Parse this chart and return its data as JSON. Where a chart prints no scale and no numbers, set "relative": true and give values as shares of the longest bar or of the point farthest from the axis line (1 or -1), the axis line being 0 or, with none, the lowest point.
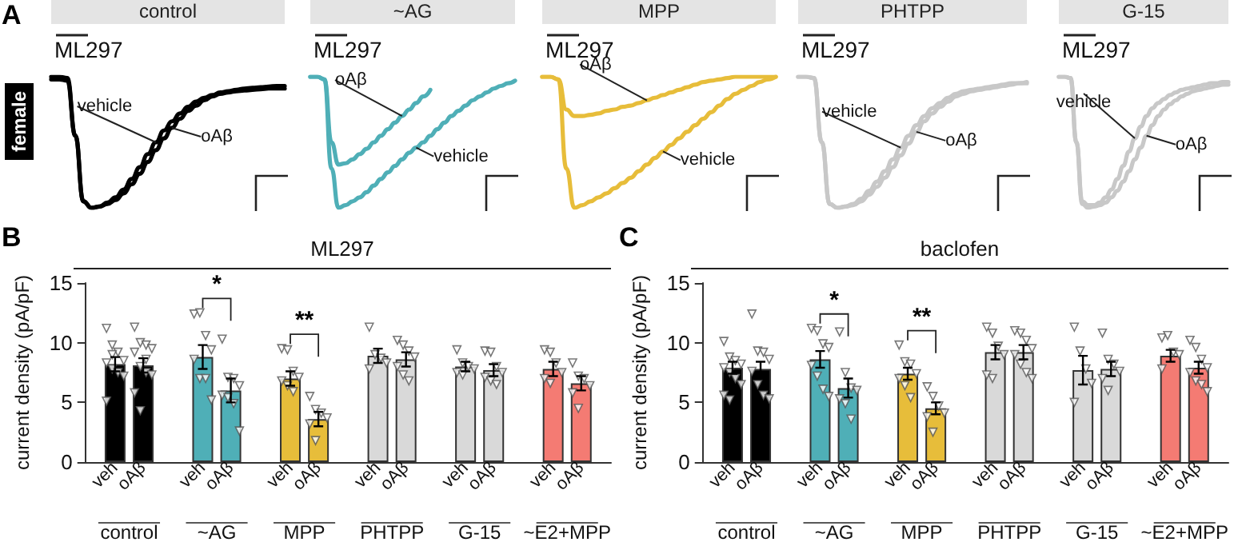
{
  "chart_data": [
    {
      "type": "line",
      "title": "control",
      "relative": true,
      "categories": [
        null,
        null,
        null,
        null,
        null,
        null,
        null,
        null,
        null,
        null,
        null,
        null,
        null,
        null,
        null,
        null,
        null,
        null,
        null,
        null,
        null,
        null,
        null,
        null,
        null,
        null,
        null,
        null,
        null,
        null
      ],
      "annotations": [
        "A",
        "female",
        "ML297"
      ],
      "series": [
        {
          "name": "vehicle",
          "color": "#000000",
          "values": [
            1,
            1,
            0.99,
            0.55,
            0.05,
            0,
            0.01,
            0.04,
            0.08,
            0.14,
            0.22,
            0.31,
            0.41,
            0.5,
            0.59,
            0.66,
            0.72,
            0.77,
            0.81,
            0.84,
            0.86,
            0.88,
            0.89,
            0.9,
            0.91,
            0.915,
            0.92,
            0.925,
            0.93,
            0.93
          ]
        },
        {
          "name": "oAβ",
          "color": "#000000",
          "values": [
            0.98,
            0.98,
            0.97,
            0.55,
            0.05,
            0,
            0.01,
            0.03,
            0.06,
            0.11,
            0.18,
            0.26,
            0.35,
            0.44,
            0.53,
            0.61,
            0.68,
            0.74,
            0.78,
            0.82,
            0.85,
            0.87,
            0.88,
            0.89,
            0.895,
            0.9,
            0.905,
            0.91,
            0.91,
            0.91
          ]
        }
      ]
    },
    {
      "type": "line",
      "title": "~AG",
      "relative": true,
      "categories": [
        null,
        null,
        null,
        null,
        null,
        null,
        null,
        null,
        null,
        null,
        null,
        null,
        null,
        null,
        null,
        null,
        null,
        null,
        null,
        null,
        null,
        null,
        null,
        null,
        null,
        null,
        null,
        null,
        null,
        null
      ],
      "annotations": [
        "ML297"
      ],
      "series": [
        {
          "name": "oAβ",
          "color": "#4fafb7",
          "values": [
            1,
            1,
            0.98,
            0.5,
            0.33,
            0.34,
            0.37,
            0.41,
            0.45,
            0.5,
            0.55,
            0.6,
            0.65,
            0.7,
            0.75,
            0.8,
            0.85,
            0.9,
            null,
            null,
            null,
            null,
            null,
            null,
            null,
            null,
            null,
            null,
            null,
            null
          ]
        },
        {
          "name": "vehicle",
          "color": "#4fafb7",
          "values": [
            1,
            1,
            0.98,
            0.3,
            0,
            0.02,
            0.05,
            0.08,
            0.12,
            0.17,
            0.22,
            0.27,
            0.32,
            0.37,
            0.42,
            0.46,
            0.5,
            0.55,
            0.6,
            0.65,
            0.7,
            0.74,
            0.78,
            0.82,
            0.85,
            0.88,
            0.91,
            0.93,
            0.95,
            0.97
          ]
        }
      ]
    },
    {
      "type": "line",
      "title": "MPP",
      "relative": true,
      "categories": [
        null,
        null,
        null,
        null,
        null,
        null,
        null,
        null,
        null,
        null,
        null,
        null,
        null,
        null,
        null,
        null,
        null,
        null,
        null,
        null,
        null,
        null,
        null,
        null,
        null,
        null,
        null,
        null,
        null,
        null
      ],
      "annotations": [
        "ML297"
      ],
      "series": [
        {
          "name": "oAβ",
          "color": "#e7bd3a",
          "values": [
            1,
            1,
            0.98,
            0.75,
            0.7,
            0.7,
            0.71,
            0.72,
            0.74,
            0.75,
            0.77,
            0.78,
            0.8,
            0.82,
            0.84,
            0.86,
            0.88,
            0.9,
            0.92,
            0.94,
            0.96,
            0.97,
            0.98,
            0.99,
            1,
            1,
            1,
            1,
            1,
            1
          ]
        },
        {
          "name": "vehicle",
          "color": "#e7bd3a",
          "values": [
            1,
            1,
            0.98,
            0.3,
            0,
            0.02,
            0.05,
            0.08,
            0.11,
            0.15,
            0.19,
            0.23,
            0.28,
            0.33,
            0.38,
            0.43,
            0.48,
            0.53,
            0.58,
            0.63,
            0.68,
            0.73,
            0.78,
            0.83,
            0.87,
            0.9,
            0.93,
            0.96,
            0.98,
            1
          ]
        }
      ]
    },
    {
      "type": "line",
      "title": "PHTPP",
      "relative": true,
      "categories": [
        null,
        null,
        null,
        null,
        null,
        null,
        null,
        null,
        null,
        null,
        null,
        null,
        null,
        null,
        null,
        null,
        null,
        null,
        null,
        null,
        null,
        null,
        null,
        null,
        null,
        null,
        null,
        null,
        null,
        null
      ],
      "annotations": [
        "ML297"
      ],
      "series": [
        {
          "name": "vehicle",
          "color": "#c8c8c8",
          "values": [
            1,
            1,
            0.99,
            0.5,
            0.03,
            0,
            0.01,
            0.03,
            0.07,
            0.13,
            0.2,
            0.28,
            0.37,
            0.46,
            0.55,
            0.63,
            0.7,
            0.76,
            0.8,
            0.84,
            0.87,
            0.89,
            0.9,
            0.91,
            0.92,
            0.93,
            0.94,
            0.95,
            0.95,
            0.96
          ]
        },
        {
          "name": "oAβ",
          "color": "#c8c8c8",
          "values": [
            1,
            1,
            0.99,
            0.5,
            0.03,
            0,
            0.01,
            0.02,
            0.05,
            0.1,
            0.16,
            0.23,
            0.31,
            0.4,
            0.49,
            0.58,
            0.66,
            0.72,
            0.77,
            0.81,
            0.85,
            0.87,
            0.89,
            0.9,
            0.91,
            0.92,
            0.93,
            0.94,
            0.95,
            0.95
          ]
        }
      ]
    },
    {
      "type": "line",
      "title": "G-15",
      "relative": true,
      "categories": [
        null,
        null,
        null,
        null,
        null,
        null,
        null,
        null,
        null,
        null,
        null,
        null,
        null,
        null,
        null,
        null,
        null,
        null,
        null,
        null,
        null,
        null,
        null,
        null,
        null,
        null,
        null,
        null,
        null,
        null
      ],
      "annotations": [
        "ML297"
      ],
      "series": [
        {
          "name": "vehicle",
          "color": "#c8c8c8",
          "values": [
            1,
            1,
            0.99,
            0.5,
            0.05,
            0.02,
            0.02,
            0.04,
            0.08,
            0.14,
            0.22,
            0.32,
            0.43,
            0.53,
            0.62,
            0.7,
            0.76,
            0.8,
            0.83,
            0.86,
            0.88,
            0.9,
            0.91,
            0.92,
            0.93,
            0.94,
            0.95,
            0.95,
            0.96,
            0.96
          ]
        },
        {
          "name": "oAβ",
          "color": "#c8c8c8",
          "values": [
            1,
            1,
            0.99,
            0.5,
            0.03,
            0,
            0.01,
            0.02,
            0.04,
            0.08,
            0.13,
            0.2,
            0.28,
            0.37,
            0.46,
            0.55,
            0.63,
            0.7,
            0.75,
            0.79,
            0.82,
            0.85,
            0.87,
            0.89,
            0.9,
            0.91,
            0.92,
            0.93,
            0.94,
            0.94
          ]
        }
      ]
    },
    {
      "type": "bar",
      "title": "ML297",
      "ylabel": "current density (pA/pF)",
      "categories": [
        "control",
        "~AG",
        "MPP",
        "PHTPP",
        "G-15",
        "~E2+MPP"
      ],
      "ylim": [
        0,
        15
      ],
      "yticks": [
        0,
        5,
        10,
        15
      ],
      "marker": "triangle",
      "annotations": [
        "B",
        "*",
        "**"
      ],
      "series": [
        {
          "name": "veh",
          "colors": [
            "#000000",
            "#4fafb7",
            "#e7bd3a",
            "#d9d9d9",
            "#d9d9d9",
            "#f47b73"
          ],
          "values": [
            8.2,
            8.8,
            7.0,
            8.9,
            8.0,
            7.8
          ],
          "errors": [
            0.6,
            1.0,
            0.6,
            0.6,
            0.4,
            0.6
          ]
        },
        {
          "name": "oAβ",
          "colors": [
            "#000000",
            "#4fafb7",
            "#e7bd3a",
            "#d9d9d9",
            "#d9d9d9",
            "#f47b73"
          ],
          "values": [
            8.1,
            6.0,
            3.6,
            8.6,
            7.7,
            6.6
          ],
          "errors": [
            0.6,
            1.0,
            0.6,
            0.6,
            0.5,
            0.6
          ]
        },
        {
          "type": "scatter",
          "color": "#ffffff",
          "x": [
            "control",
            "control",
            "control",
            "control",
            "control",
            "control",
            "control",
            "control",
            "control",
            "control",
            "~AG",
            "~AG",
            "~AG",
            "~AG",
            "~AG",
            "~AG",
            "~AG",
            "~AG",
            "MPP",
            "MPP",
            "MPP",
            "MPP",
            "MPP",
            "MPP",
            "MPP",
            "PHTPP",
            "PHTPP",
            "PHTPP",
            "PHTPP",
            "PHTPP",
            "G-15",
            "G-15",
            "G-15",
            "G-15",
            "G-15",
            "G-15",
            "~E2+MPP",
            "~E2+MPP",
            "~E2+MPP",
            "~E2+MPP",
            "~E2+MPP",
            "~E2+MPP"
          ],
          "values": [
            11.2,
            9.8,
            9.2,
            8.5,
            8.3,
            7.8,
            7.5,
            7.2,
            5.1,
            9.0,
            12.4,
            12.5,
            10.6,
            9.4,
            8.6,
            7.0,
            7.0,
            5.2,
            9.5,
            9.4,
            7.6,
            7.1,
            6.8,
            6.4,
            5.9,
            11.3,
            9.0,
            8.7,
            8.3,
            7.8,
            9.4,
            8.3,
            8.0,
            7.8,
            7.5,
            7.3,
            9.4,
            9.2,
            8.3,
            7.5,
            7.0,
            6.6
          ]
        },
        {
          "type": "scatter",
          "color": "#ffffff",
          "x": [
            "control",
            "control",
            "control",
            "control",
            "control",
            "control",
            "control",
            "control",
            "control",
            "control",
            "control",
            "~AG",
            "~AG",
            "~AG",
            "~AG",
            "~AG",
            "~AG",
            "~AG",
            "~AG",
            "MPP",
            "MPP",
            "MPP",
            "MPP",
            "MPP",
            "MPP",
            "PHTPP",
            "PHTPP",
            "PHTPP",
            "PHTPP",
            "PHTPP",
            "PHTPP",
            "PHTPP",
            "G-15",
            "G-15",
            "G-15",
            "G-15",
            "G-15",
            "G-15",
            "G-15",
            "~E2+MPP",
            "~E2+MPP",
            "~E2+MPP",
            "~E2+MPP",
            "~E2+MPP",
            "~E2+MPP"
          ],
          "values": [
            11.3,
            10.0,
            9.8,
            9.5,
            9.2,
            8.0,
            7.5,
            7.3,
            5.8,
            4.3,
            8.6,
            10.3,
            7.1,
            7.0,
            6.4,
            5.6,
            5.4,
            4.9,
            2.6,
            5.5,
            4.4,
            4.1,
            3.7,
            3.2,
            1.8,
            10.2,
            9.8,
            9.3,
            8.8,
            8.0,
            7.3,
            6.8,
            9.3,
            9.2,
            8.0,
            7.5,
            7.1,
            6.8,
            6.5,
            8.3,
            7.2,
            7.0,
            6.4,
            5.8,
            4.5
          ]
        }
      ]
    },
    {
      "type": "bar",
      "title": "baclofen",
      "ylabel": "current density (pA/pF)",
      "categories": [
        "control",
        "~AG",
        "MPP",
        "PHTPP",
        "G-15",
        "~E2+MPP"
      ],
      "ylim": [
        0,
        15
      ],
      "yticks": [
        0,
        5,
        10,
        15
      ],
      "marker": "triangle",
      "annotations": [
        "C",
        "*",
        "**"
      ],
      "series": [
        {
          "name": "veh",
          "colors": [
            "#000000",
            "#4fafb7",
            "#e7bd3a",
            "#d9d9d9",
            "#d9d9d9",
            "#f47b73"
          ],
          "values": [
            7.9,
            8.6,
            7.4,
            9.2,
            7.7,
            8.9
          ],
          "errors": [
            0.5,
            0.7,
            0.5,
            0.6,
            1.2,
            0.5
          ]
        },
        {
          "name": "oAβ",
          "colors": [
            "#000000",
            "#4fafb7",
            "#e7bd3a",
            "#d9d9d9",
            "#d9d9d9",
            "#f47b73"
          ],
          "values": [
            7.8,
            6.2,
            4.5,
            9.2,
            7.8,
            7.9
          ],
          "errors": [
            0.6,
            0.8,
            0.5,
            0.6,
            0.6,
            0.5
          ]
        },
        {
          "type": "scatter",
          "color": "#ffffff",
          "x": [
            "control",
            "control",
            "control",
            "control",
            "control",
            "control",
            "control",
            "control",
            "control",
            "control",
            "~AG",
            "~AG",
            "~AG",
            "~AG",
            "~AG",
            "~AG",
            "~AG",
            "~AG",
            "MPP",
            "MPP",
            "MPP",
            "MPP",
            "MPP",
            "MPP",
            "MPP",
            "PHTPP",
            "PHTPP",
            "PHTPP",
            "PHTPP",
            "PHTPP",
            "PHTPP",
            "G-15",
            "G-15",
            "G-15",
            "G-15",
            "G-15",
            "~E2+MPP",
            "~E2+MPP",
            "~E2+MPP",
            "~E2+MPP",
            "~E2+MPP"
          ],
          "values": [
            10.1,
            8.8,
            8.5,
            8.2,
            7.9,
            7.5,
            7.0,
            6.5,
            5.6,
            5.2,
            11.2,
            11.0,
            9.9,
            9.6,
            8.1,
            7.2,
            6.1,
            5.5,
            9.8,
            8.4,
            8.2,
            7.4,
            7.0,
            6.4,
            5.4,
            11.3,
            10.8,
            9.7,
            9.0,
            7.3,
            7.0,
            11.3,
            9.3,
            7.8,
            6.6,
            5.0,
            10.4,
            10.6,
            9.2,
            9.0,
            7.8
          ]
        },
        {
          "type": "scatter",
          "color": "#ffffff",
          "x": [
            "control",
            "control",
            "control",
            "control",
            "control",
            "control",
            "control",
            "control",
            "~AG",
            "~AG",
            "~AG",
            "~AG",
            "~AG",
            "~AG",
            "~AG",
            "MPP",
            "MPP",
            "MPP",
            "MPP",
            "MPP",
            "MPP",
            "PHTPP",
            "PHTPP",
            "PHTPP",
            "PHTPP",
            "PHTPP",
            "PHTPP",
            "PHTPP",
            "PHTPP",
            "G-15",
            "G-15",
            "G-15",
            "G-15",
            "G-15",
            "G-15",
            "~E2+MPP",
            "~E2+MPP",
            "~E2+MPP",
            "~E2+MPP",
            "~E2+MPP",
            "~E2+MPP",
            "~E2+MPP",
            "~E2+MPP"
          ],
          "values": [
            12.4,
            9.3,
            9.2,
            8.6,
            7.6,
            6.5,
            5.6,
            5.3,
            10.9,
            7.5,
            6.2,
            6.0,
            5.3,
            4.9,
            3.6,
            6.3,
            5.5,
            4.7,
            4.1,
            3.8,
            2.5,
            11.0,
            10.8,
            10.2,
            9.5,
            9.0,
            8.2,
            7.5,
            7.0,
            10.8,
            8.6,
            8.2,
            7.6,
            7.0,
            6.0,
            10.2,
            9.6,
            8.6,
            7.9,
            7.5,
            6.8,
            6.5,
            5.9
          ]
        }
      ]
    }
  ]
}
